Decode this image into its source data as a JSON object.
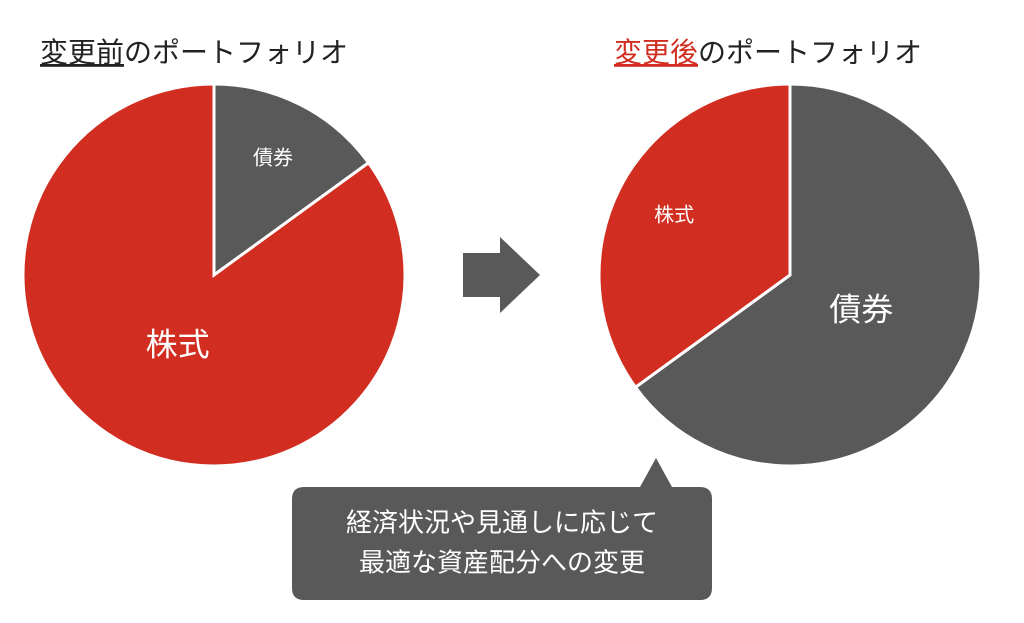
{
  "chart_data": [
    {
      "type": "pie",
      "title": [
        "変更前",
        "のポートフォリオ"
      ],
      "title_color": "#222222",
      "categories": [
        "債券",
        "株式"
      ],
      "values": [
        15,
        85
      ],
      "colors": [
        "#595959",
        "#d12d20"
      ]
    },
    {
      "type": "pie",
      "title": [
        "変更後",
        "のポートフォリオ"
      ],
      "title_color": "#d12d20",
      "categories": [
        "債券",
        "株式"
      ],
      "values": [
        65,
        35
      ],
      "colors": [
        "#595959",
        "#d12d20"
      ]
    }
  ],
  "note": [
    "経済状況や見通しに応じて",
    "最適な資産配分への変更"
  ]
}
